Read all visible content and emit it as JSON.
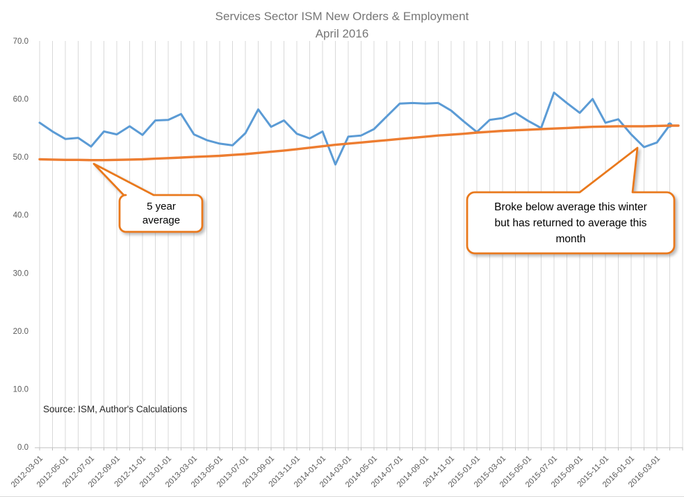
{
  "title": {
    "line1": "Services Sector ISM New Orders & Employment",
    "line2": "April 2016"
  },
  "source_note": "Source: ISM, Author's Calculations",
  "callouts": {
    "five_year_average": {
      "text": "5 year\naverage"
    },
    "winter_note": {
      "text": "Broke below average this winter\nbut has returned to average this\nmonth"
    }
  },
  "colors": {
    "background": "#FFFFFF",
    "series_blue": "#5B9BD5",
    "series_orange": "#ED7D31",
    "callout_border": "#E9791E",
    "callout_fill": "#FFFFFF",
    "gridline": "#D9D9D9",
    "axis_line": "#BFBFBF",
    "tick_label": "#595959",
    "title_text": "#767676",
    "source_text": "#262626",
    "callout_text": "#000000"
  },
  "chart_data": {
    "type": "line",
    "title": "Services Sector ISM New Orders & Employment — April 2016",
    "xlabel": "",
    "ylabel": "",
    "ylim": [
      0,
      70
    ],
    "y_ticks": [
      0,
      10,
      20,
      30,
      40,
      50,
      60,
      70
    ],
    "y_tick_decimals": 1,
    "x_tick_interval": 2,
    "grid": "vertical-monthly",
    "legend": "none",
    "last_point_marker": true,
    "categories": [
      "2012-03-01",
      "2012-04-01",
      "2012-05-01",
      "2012-06-01",
      "2012-07-01",
      "2012-08-01",
      "2012-09-01",
      "2012-10-01",
      "2012-11-01",
      "2012-12-01",
      "2013-01-01",
      "2013-02-01",
      "2013-03-01",
      "2013-04-01",
      "2013-05-01",
      "2013-06-01",
      "2013-07-01",
      "2013-08-01",
      "2013-09-01",
      "2013-10-01",
      "2013-11-01",
      "2013-12-01",
      "2014-01-01",
      "2014-02-01",
      "2014-03-01",
      "2014-04-01",
      "2014-05-01",
      "2014-06-01",
      "2014-07-01",
      "2014-08-01",
      "2014-09-01",
      "2014-10-01",
      "2014-11-01",
      "2014-12-01",
      "2015-01-01",
      "2015-02-01",
      "2015-03-01",
      "2015-04-01",
      "2015-05-01",
      "2015-06-01",
      "2015-07-01",
      "2015-08-01",
      "2015-09-01",
      "2015-10-01",
      "2015-11-01",
      "2015-12-01",
      "2016-01-01",
      "2016-02-01",
      "2016-03-01",
      "2016-04-01"
    ],
    "series": [
      {
        "name": "ISM New Orders & Employment",
        "color": "#5B9BD5",
        "values": [
          55.9,
          54.4,
          53.1,
          53.3,
          51.8,
          54.4,
          53.9,
          55.3,
          53.8,
          56.3,
          56.4,
          57.4,
          53.9,
          52.9,
          52.3,
          52.0,
          54.1,
          58.2,
          55.2,
          56.3,
          54.0,
          53.2,
          54.4,
          48.7,
          53.5,
          53.7,
          54.8,
          57.0,
          59.2,
          59.3,
          59.2,
          59.3,
          58.0,
          56.1,
          54.3,
          56.4,
          56.7,
          57.6,
          56.2,
          55.0,
          61.1,
          59.3,
          57.6,
          60.0,
          55.9,
          56.5,
          53.9,
          51.7,
          52.5,
          55.5
        ]
      },
      {
        "name": "5 year average",
        "color": "#ED7D31",
        "values": [
          49.6,
          49.55,
          49.5,
          49.5,
          49.45,
          49.45,
          49.5,
          49.55,
          49.6,
          49.7,
          49.8,
          49.9,
          50.0,
          50.1,
          50.2,
          50.35,
          50.5,
          50.7,
          50.9,
          51.1,
          51.35,
          51.6,
          51.85,
          52.1,
          52.3,
          52.5,
          52.7,
          52.9,
          53.1,
          53.3,
          53.5,
          53.7,
          53.85,
          54.0,
          54.2,
          54.35,
          54.5,
          54.6,
          54.7,
          54.8,
          54.9,
          55.0,
          55.1,
          55.2,
          55.25,
          55.3,
          55.3,
          55.3,
          55.35,
          55.4
        ]
      }
    ]
  }
}
